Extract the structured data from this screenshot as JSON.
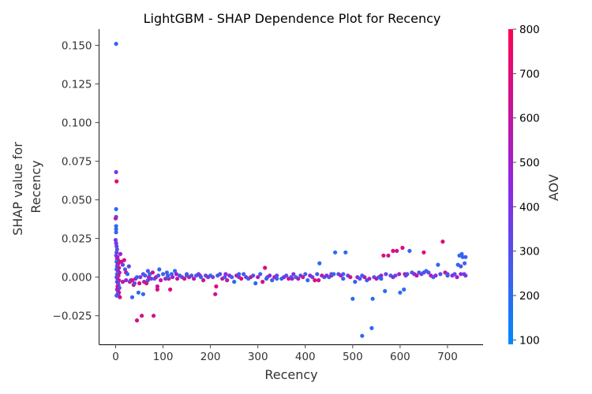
{
  "chart_data": {
    "type": "scatter",
    "title": "LightGBM - SHAP Dependence Plot for Recency",
    "xlabel": "Recency",
    "ylabel_lines": [
      "SHAP value for",
      "Recency"
    ],
    "xlim": [
      -35,
      775
    ],
    "ylim": [
      -0.0435,
      0.1605
    ],
    "xticks": [
      0,
      100,
      200,
      300,
      400,
      500,
      600,
      700
    ],
    "yticks": [
      -0.025,
      0.0,
      0.025,
      0.05,
      0.075,
      0.1,
      0.125,
      0.15
    ],
    "ytick_labels": [
      "−0.025",
      "0.000",
      "0.025",
      "0.050",
      "0.075",
      "0.100",
      "0.125",
      "0.150"
    ],
    "grid": false,
    "colorbar": {
      "label": "AOV",
      "range": [
        90,
        800
      ],
      "ticks": [
        100,
        200,
        300,
        400,
        500,
        600,
        700,
        800
      ],
      "colormap": [
        "#008afb",
        "#8f27e0",
        "#ff0052"
      ]
    },
    "points": [
      [
        1,
        0.151,
        230
      ],
      [
        1,
        0.068,
        380
      ],
      [
        2,
        0.062,
        720
      ],
      [
        1,
        0.044,
        200
      ],
      [
        1,
        0.039,
        230
      ],
      [
        0,
        0.038,
        600
      ],
      [
        1,
        0.033,
        200
      ],
      [
        1,
        0.031,
        220
      ],
      [
        1,
        0.029,
        230
      ],
      [
        0,
        0.024,
        330
      ],
      [
        1,
        0.022,
        420
      ],
      [
        2,
        0.02,
        350
      ],
      [
        3,
        0.018,
        250
      ],
      [
        2,
        0.016,
        380
      ],
      [
        1,
        0.014,
        300
      ],
      [
        4,
        0.013,
        450
      ],
      [
        3,
        0.012,
        600
      ],
      [
        5,
        0.011,
        550
      ],
      [
        2,
        0.01,
        200
      ],
      [
        6,
        0.009,
        500
      ],
      [
        4,
        0.008,
        700
      ],
      [
        3,
        0.007,
        300
      ],
      [
        7,
        0.006,
        650
      ],
      [
        2,
        0.005,
        250
      ],
      [
        5,
        0.004,
        400
      ],
      [
        8,
        0.003,
        550
      ],
      [
        3,
        0.002,
        200
      ],
      [
        6,
        0.001,
        700
      ],
      [
        2,
        0.0,
        300
      ],
      [
        4,
        -0.001,
        450
      ],
      [
        7,
        -0.002,
        600
      ],
      [
        3,
        -0.003,
        250
      ],
      [
        5,
        -0.004,
        500
      ],
      [
        6,
        -0.005,
        200
      ],
      [
        4,
        -0.006,
        650
      ],
      [
        8,
        -0.007,
        300
      ],
      [
        3,
        -0.008,
        550
      ],
      [
        5,
        -0.009,
        400
      ],
      [
        7,
        -0.01,
        700
      ],
      [
        6,
        -0.012,
        600
      ],
      [
        2,
        -0.012,
        200
      ],
      [
        9,
        -0.013,
        650
      ],
      [
        4,
        -0.011,
        300
      ],
      [
        10,
        0.015,
        500
      ],
      [
        12,
        0.01,
        700
      ],
      [
        15,
        0.008,
        300
      ],
      [
        18,
        0.011,
        650
      ],
      [
        20,
        0.005,
        250
      ],
      [
        22,
        0.003,
        700
      ],
      [
        25,
        0.002,
        200
      ],
      [
        28,
        0.007,
        350
      ],
      [
        30,
        -0.003,
        600
      ],
      [
        32,
        -0.002,
        250
      ],
      [
        35,
        -0.013,
        200
      ],
      [
        38,
        -0.005,
        650
      ],
      [
        40,
        -0.004,
        300
      ],
      [
        42,
        -0.001,
        550
      ],
      [
        45,
        -0.028,
        650
      ],
      [
        48,
        -0.01,
        200
      ],
      [
        50,
        -0.004,
        700
      ],
      [
        52,
        0.0,
        400
      ],
      [
        55,
        -0.025,
        650
      ],
      [
        58,
        -0.011,
        200
      ],
      [
        60,
        -0.003,
        550
      ],
      [
        62,
        0.001,
        250
      ],
      [
        65,
        -0.004,
        700
      ],
      [
        68,
        -0.002,
        300
      ],
      [
        70,
        0.0,
        600
      ],
      [
        72,
        0.002,
        220
      ],
      [
        75,
        -0.001,
        400
      ],
      [
        78,
        0.003,
        650
      ],
      [
        80,
        -0.025,
        650
      ],
      [
        82,
        -0.001,
        250
      ],
      [
        85,
        0.0,
        550
      ],
      [
        88,
        -0.008,
        700
      ],
      [
        88,
        -0.006,
        650
      ],
      [
        90,
        0.001,
        300
      ],
      [
        92,
        0.005,
        200
      ],
      [
        95,
        -0.002,
        600
      ],
      [
        100,
        0.002,
        250
      ],
      [
        105,
        -0.001,
        500
      ],
      [
        108,
        0.003,
        200
      ],
      [
        110,
        0.001,
        300
      ],
      [
        112,
        -0.001,
        650
      ],
      [
        115,
        -0.008,
        700
      ],
      [
        118,
        0.002,
        220
      ],
      [
        120,
        0.0,
        450
      ],
      [
        125,
        0.004,
        200
      ],
      [
        130,
        -0.001,
        600
      ],
      [
        135,
        0.001,
        250
      ],
      [
        140,
        0.0,
        350
      ],
      [
        145,
        -0.001,
        650
      ],
      [
        150,
        0.002,
        200
      ],
      [
        155,
        0.0,
        550
      ],
      [
        160,
        0.001,
        300
      ],
      [
        165,
        -0.001,
        600
      ],
      [
        170,
        0.001,
        250
      ],
      [
        175,
        0.002,
        400
      ],
      [
        180,
        0.0,
        200
      ],
      [
        185,
        -0.002,
        650
      ],
      [
        190,
        0.001,
        300
      ],
      [
        195,
        0.0,
        500
      ],
      [
        200,
        0.001,
        220
      ],
      [
        205,
        0.0,
        350
      ],
      [
        210,
        -0.011,
        650
      ],
      [
        212,
        -0.006,
        700
      ],
      [
        215,
        0.001,
        250
      ],
      [
        220,
        0.002,
        300
      ],
      [
        225,
        -0.001,
        650
      ],
      [
        230,
        0.0,
        200
      ],
      [
        235,
        -0.002,
        600
      ],
      [
        240,
        0.001,
        450
      ],
      [
        245,
        0.0,
        250
      ],
      [
        250,
        -0.003,
        200
      ],
      [
        255,
        0.001,
        650
      ],
      [
        260,
        0.0,
        350
      ],
      [
        265,
        -0.001,
        700
      ],
      [
        270,
        0.002,
        250
      ],
      [
        275,
        0.0,
        400
      ],
      [
        280,
        -0.001,
        200
      ],
      [
        285,
        0.0,
        600
      ],
      [
        290,
        0.001,
        300
      ],
      [
        295,
        -0.004,
        200
      ],
      [
        300,
        0.0,
        550
      ],
      [
        305,
        0.002,
        250
      ],
      [
        310,
        -0.003,
        650
      ],
      [
        315,
        0.006,
        700
      ],
      [
        320,
        0.0,
        300
      ],
      [
        325,
        0.001,
        450
      ],
      [
        330,
        -0.002,
        250
      ],
      [
        335,
        0.0,
        600
      ],
      [
        340,
        0.001,
        350
      ],
      [
        350,
        -0.001,
        200
      ],
      [
        355,
        0.0,
        450
      ],
      [
        360,
        0.001,
        300
      ],
      [
        365,
        -0.001,
        650
      ],
      [
        370,
        0.0,
        250
      ],
      [
        375,
        0.002,
        400
      ],
      [
        380,
        0.0,
        200
      ],
      [
        385,
        -0.001,
        550
      ],
      [
        390,
        0.001,
        300
      ],
      [
        395,
        0.0,
        650
      ],
      [
        400,
        0.002,
        250
      ],
      [
        405,
        -0.002,
        200
      ],
      [
        410,
        0.001,
        500
      ],
      [
        415,
        0.0,
        350
      ],
      [
        420,
        -0.002,
        700
      ],
      [
        425,
        0.002,
        250
      ],
      [
        428,
        -0.002,
        650
      ],
      [
        430,
        0.009,
        200
      ],
      [
        435,
        0.001,
        600
      ],
      [
        440,
        0.0,
        300
      ],
      [
        445,
        0.001,
        450
      ],
      [
        450,
        0.0,
        250
      ],
      [
        455,
        0.001,
        650
      ],
      [
        460,
        0.002,
        200
      ],
      [
        463,
        0.016,
        200
      ],
      [
        470,
        0.002,
        300
      ],
      [
        475,
        0.001,
        550
      ],
      [
        480,
        0.002,
        250
      ],
      [
        485,
        0.016,
        200
      ],
      [
        490,
        0.001,
        350
      ],
      [
        495,
        0.0,
        650
      ],
      [
        500,
        -0.014,
        200
      ],
      [
        505,
        -0.003,
        250
      ],
      [
        510,
        0.0,
        450
      ],
      [
        515,
        -0.001,
        300
      ],
      [
        520,
        -0.038,
        200
      ],
      [
        525,
        0.0,
        650
      ],
      [
        530,
        -0.002,
        250
      ],
      [
        535,
        -0.001,
        500
      ],
      [
        540,
        -0.033,
        200
      ],
      [
        542,
        -0.014,
        200
      ],
      [
        545,
        0.0,
        300
      ],
      [
        550,
        -0.001,
        600
      ],
      [
        555,
        0.0,
        250
      ],
      [
        560,
        0.001,
        450
      ],
      [
        565,
        0.014,
        700
      ],
      [
        568,
        -0.009,
        200
      ],
      [
        570,
        0.002,
        350
      ],
      [
        575,
        0.014,
        650
      ],
      [
        580,
        0.001,
        250
      ],
      [
        585,
        0.017,
        700
      ],
      [
        590,
        0.001,
        300
      ],
      [
        593,
        0.017,
        650
      ],
      [
        598,
        0.002,
        500
      ],
      [
        600,
        -0.01,
        200
      ],
      [
        605,
        0.019,
        700
      ],
      [
        608,
        -0.008,
        200
      ],
      [
        610,
        0.002,
        650
      ],
      [
        615,
        0.002,
        300
      ],
      [
        620,
        0.017,
        200
      ],
      [
        625,
        0.003,
        250
      ],
      [
        630,
        0.002,
        450
      ],
      [
        635,
        0.001,
        600
      ],
      [
        640,
        0.003,
        250
      ],
      [
        645,
        0.002,
        350
      ],
      [
        650,
        0.016,
        700
      ],
      [
        655,
        0.004,
        200
      ],
      [
        660,
        0.003,
        300
      ],
      [
        665,
        0.001,
        550
      ],
      [
        670,
        0.0,
        250
      ],
      [
        675,
        0.001,
        450
      ],
      [
        680,
        0.008,
        200
      ],
      [
        685,
        0.002,
        300
      ],
      [
        690,
        0.023,
        700
      ],
      [
        695,
        0.003,
        650
      ],
      [
        700,
        0.002,
        250
      ],
      [
        710,
        0.001,
        450
      ],
      [
        715,
        0.002,
        300
      ],
      [
        720,
        0.0,
        500
      ],
      [
        722,
        0.008,
        200
      ],
      [
        725,
        0.014,
        220
      ],
      [
        728,
        0.007,
        300
      ],
      [
        730,
        0.015,
        200
      ],
      [
        732,
        0.013,
        250
      ],
      [
        735,
        0.002,
        300
      ],
      [
        736,
        0.009,
        220
      ],
      [
        738,
        0.001,
        400
      ],
      [
        738,
        0.013,
        250
      ],
      [
        45,
        0.0,
        250
      ],
      [
        110,
        0.0,
        250
      ],
      [
        150,
        0.001,
        300
      ],
      [
        260,
        0.002,
        250
      ],
      [
        340,
        -0.001,
        250
      ],
      [
        480,
        -0.001,
        250
      ],
      [
        560,
        -0.001,
        250
      ],
      [
        612,
        0.001,
        350
      ],
      [
        700,
        0.001,
        300
      ],
      [
        15,
        -0.003,
        600
      ],
      [
        22,
        -0.002,
        450
      ],
      [
        35,
        -0.002,
        700
      ],
      [
        58,
        0.002,
        300
      ],
      [
        68,
        0.004,
        250
      ],
      [
        128,
        0.002,
        500
      ],
      [
        178,
        0.001,
        350
      ],
      [
        232,
        0.002,
        450
      ],
      [
        318,
        -0.001,
        250
      ],
      [
        372,
        -0.001,
        450
      ],
      [
        455,
        0.002,
        300
      ],
      [
        520,
        0.001,
        250
      ],
      [
        585,
        0.0,
        450
      ],
      [
        650,
        0.003,
        300
      ],
      [
        728,
        0.002,
        450
      ]
    ]
  }
}
